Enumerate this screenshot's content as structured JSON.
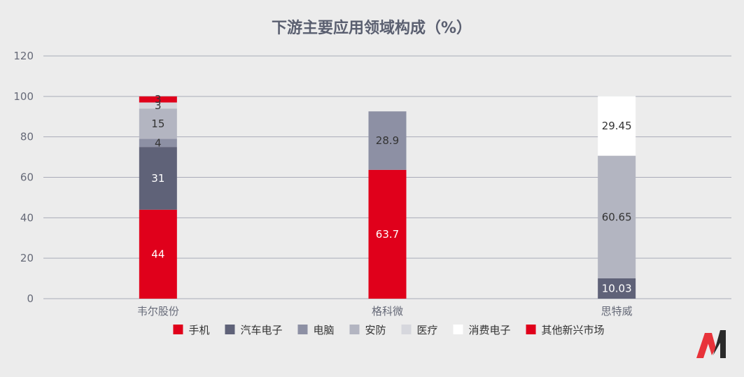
{
  "chart_data": {
    "type": "bar",
    "stacked": true,
    "title": "下游主要应用领域构成（%）",
    "xlabel": "",
    "ylabel": "",
    "ylim": [
      0,
      120
    ],
    "yticks": [
      0,
      20,
      40,
      60,
      80,
      100,
      120
    ],
    "categories": [
      "韦尔股份",
      "格科微",
      "思特威"
    ],
    "series": [
      {
        "name": "手机",
        "color": "#e0001b",
        "values": [
          44,
          63.7,
          null
        ]
      },
      {
        "name": "汽车电子",
        "color": "#5f6278",
        "values": [
          31,
          null,
          10.03
        ]
      },
      {
        "name": "电脑",
        "color": "#8d90a4",
        "values": [
          4,
          28.9,
          null
        ]
      },
      {
        "name": "安防",
        "color": "#b3b5c1",
        "values": [
          15,
          null,
          60.65
        ]
      },
      {
        "name": "医疗",
        "color": "#d6d7dd",
        "values": [
          3,
          null,
          null
        ]
      },
      {
        "name": "消费电子",
        "color": "#ffffff",
        "values": [
          null,
          null,
          29.45
        ]
      },
      {
        "name": "其他新兴市场",
        "color": "#e0001b",
        "values": [
          3,
          null,
          null
        ]
      }
    ],
    "label_colors": {
      "手机": "#ffffff",
      "汽车电子": "#ffffff",
      "电脑": "#333333",
      "安防": "#333333",
      "医疗": "#333333",
      "消费电子": "#333333",
      "其他新兴市场": "#333333"
    },
    "grid": true,
    "legend_position": "bottom"
  },
  "logo": {
    "name": "brand-logo",
    "colors": [
      "#e8333a",
      "#2a2a2a"
    ]
  }
}
